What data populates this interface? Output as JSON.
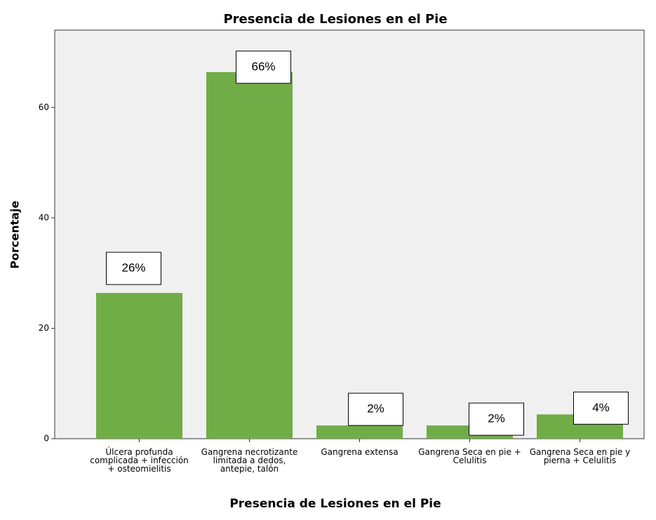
{
  "chart_data": {
    "type": "bar",
    "title": "Presencia de Lesiones en el Pie",
    "x_label": "Presencia de Lesiones en el Pie",
    "y_label": "Porcentaje",
    "categories": [
      "Úlcera profunda complicada + infección + osteomielitis",
      "Gangrena necrotizante limitada a dedos, antepie, talón",
      "Gangrena extensa",
      "Gangrena Seca en pie + Celulitis",
      "Gangrena Seca en pie y pierna + Celulitis"
    ],
    "values": [
      26.4,
      66.4,
      2.4,
      2.4,
      4.4
    ],
    "value_labels": [
      "26%",
      "66%",
      "2%",
      "2%",
      "4%"
    ],
    "color": "#70ad47",
    "ylim": [
      0,
      74
    ],
    "yticks": [
      0,
      20,
      40,
      60
    ],
    "grid": false
  }
}
